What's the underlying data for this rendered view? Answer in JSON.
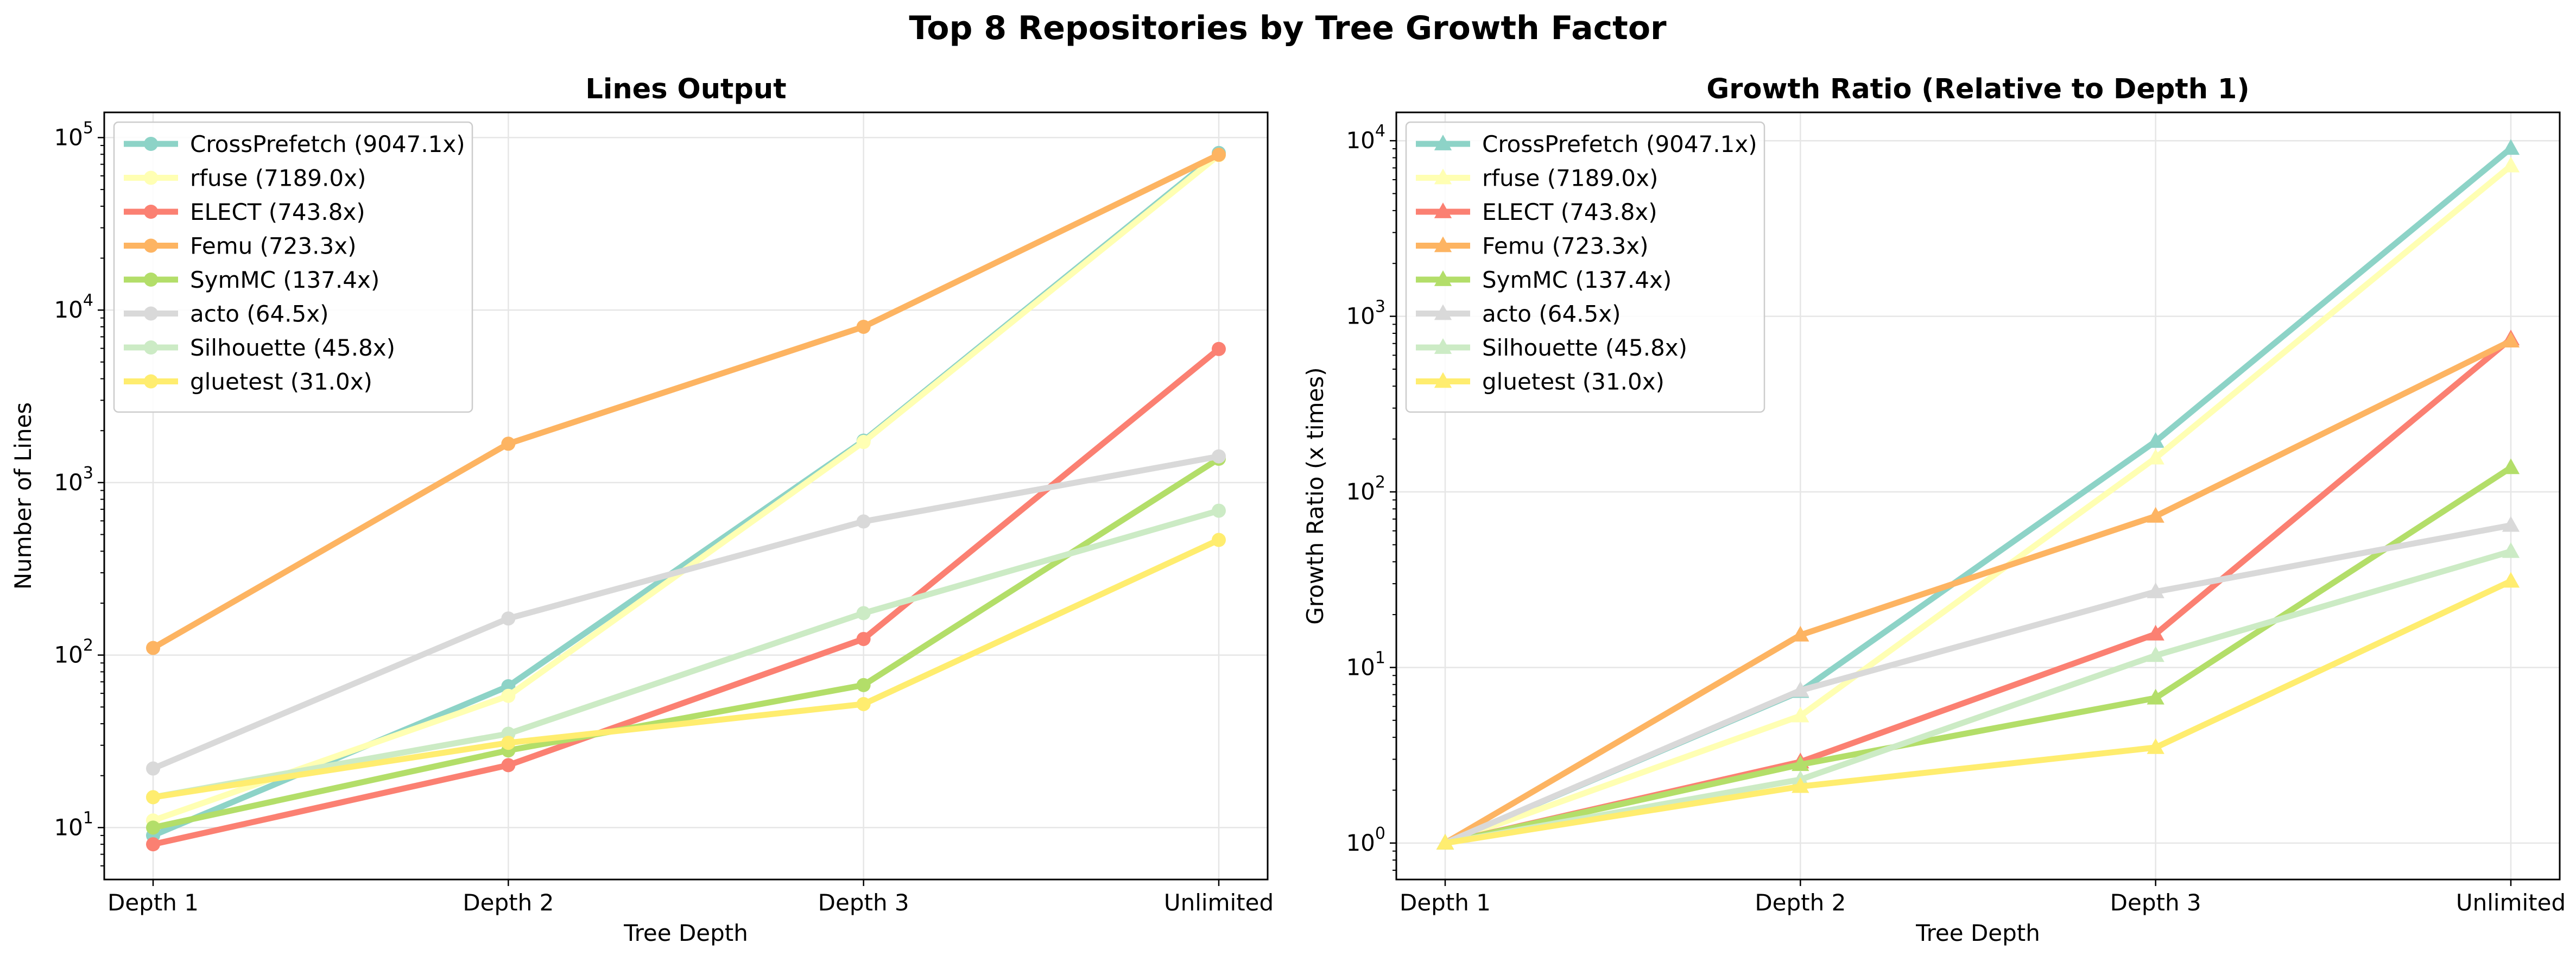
{
  "figure_title": "Top 8 Repositories by Tree Growth Factor",
  "colors": {
    "CrossPrefetch": "#8dd3c7",
    "rfuse": "#ffffb3",
    "ELECT": "#fb8072",
    "Femu": "#fdb462",
    "SymMC": "#b3de69",
    "acto": "#d9d9d9",
    "Silhouette": "#ccebc5",
    "gluetest": "#ffed6f"
  },
  "chart_data": [
    {
      "type": "line",
      "title": "Lines Output",
      "xlabel": "Tree Depth",
      "ylabel": "Number of Lines",
      "yscale": "log",
      "ylim": [
        5,
        140000
      ],
      "yticks": [
        {
          "value": 10,
          "mantissa": "10",
          "exp": "1"
        },
        {
          "value": 100,
          "mantissa": "10",
          "exp": "2"
        },
        {
          "value": 1000,
          "mantissa": "10",
          "exp": "3"
        },
        {
          "value": 10000,
          "mantissa": "10",
          "exp": "4"
        },
        {
          "value": 100000,
          "mantissa": "10",
          "exp": "5"
        }
      ],
      "categories": [
        "Depth 1",
        "Depth 2",
        "Depth 3",
        "Unlimited"
      ],
      "marker": "circle",
      "grid": true,
      "legend_position": "upper-left",
      "series": [
        {
          "name": "CrossPrefetch",
          "label": "CrossPrefetch (9047.1x)",
          "values": [
            9,
            66,
            1750,
            81424
          ]
        },
        {
          "name": "rfuse",
          "label": "rfuse (7189.0x)",
          "values": [
            11,
            58,
            1720,
            79079
          ]
        },
        {
          "name": "ELECT",
          "label": "ELECT (743.8x)",
          "values": [
            8,
            23,
            124,
            5950
          ]
        },
        {
          "name": "Femu",
          "label": "Femu (723.3x)",
          "values": [
            110,
            1680,
            8000,
            79563
          ]
        },
        {
          "name": "SymMC",
          "label": "SymMC (137.4x)",
          "values": [
            10,
            28,
            67,
            1374
          ]
        },
        {
          "name": "acto",
          "label": "acto (64.5x)",
          "values": [
            22,
            163,
            595,
            1419
          ]
        },
        {
          "name": "Silhouette",
          "label": "Silhouette (45.8x)",
          "values": [
            15,
            35,
            175,
            687
          ]
        },
        {
          "name": "gluetest",
          "label": "gluetest (31.0x)",
          "values": [
            15,
            31,
            52,
            465
          ]
        }
      ]
    },
    {
      "type": "line",
      "title": "Growth Ratio (Relative to Depth 1)",
      "xlabel": "Tree Depth",
      "ylabel": "Growth Ratio (x times)",
      "yscale": "log",
      "ylim": [
        0.62,
        14500
      ],
      "yticks": [
        {
          "value": 1,
          "mantissa": "10",
          "exp": "0"
        },
        {
          "value": 10,
          "mantissa": "10",
          "exp": "1"
        },
        {
          "value": 100,
          "mantissa": "10",
          "exp": "2"
        },
        {
          "value": 1000,
          "mantissa": "10",
          "exp": "3"
        },
        {
          "value": 10000,
          "mantissa": "10",
          "exp": "4"
        }
      ],
      "categories": [
        "Depth 1",
        "Depth 2",
        "Depth 3",
        "Unlimited"
      ],
      "marker": "triangle",
      "grid": true,
      "legend_position": "upper-left",
      "series": [
        {
          "name": "CrossPrefetch",
          "label": "CrossPrefetch (9047.1x)",
          "values": [
            1,
            7.3,
            194,
            9047.1
          ]
        },
        {
          "name": "rfuse",
          "label": "rfuse (7189.0x)",
          "values": [
            1,
            5.3,
            156,
            7189.0
          ]
        },
        {
          "name": "ELECT",
          "label": "ELECT (743.8x)",
          "values": [
            1,
            2.9,
            15.5,
            743.8
          ]
        },
        {
          "name": "Femu",
          "label": "Femu (723.3x)",
          "values": [
            1,
            15.3,
            72.7,
            723.3
          ]
        },
        {
          "name": "SymMC",
          "label": "SymMC (137.4x)",
          "values": [
            1,
            2.8,
            6.7,
            137.4
          ]
        },
        {
          "name": "acto",
          "label": "acto (64.5x)",
          "values": [
            1,
            7.4,
            27,
            64.5
          ]
        },
        {
          "name": "Silhouette",
          "label": "Silhouette (45.8x)",
          "values": [
            1,
            2.3,
            11.7,
            45.8
          ]
        },
        {
          "name": "gluetest",
          "label": "gluetest (31.0x)",
          "values": [
            1,
            2.1,
            3.5,
            31.0
          ]
        }
      ]
    }
  ]
}
